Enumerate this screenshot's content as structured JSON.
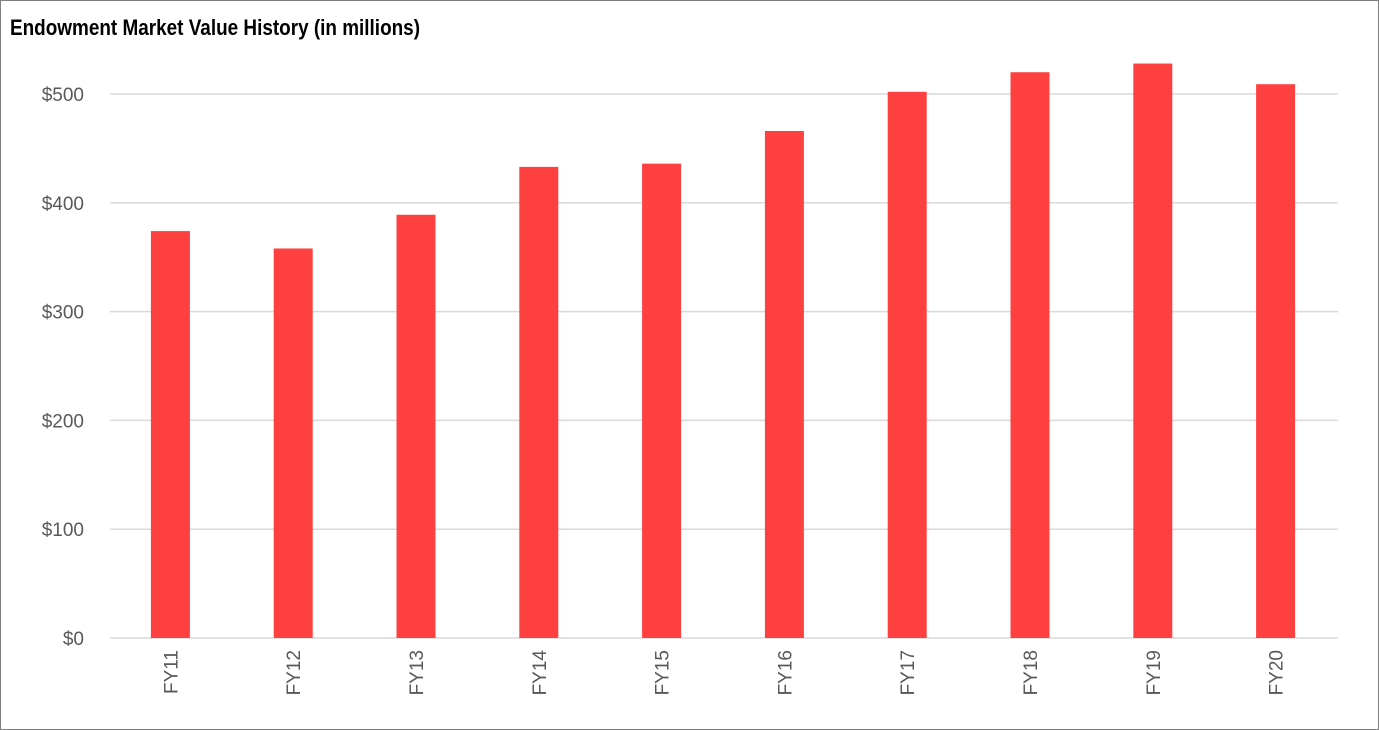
{
  "chart_data": {
    "type": "bar",
    "title": "Endowment Market Value History (in millions)",
    "xlabel": "",
    "ylabel": "",
    "categories": [
      "FY11",
      "FY12",
      "FY13",
      "FY14",
      "FY15",
      "FY16",
      "FY17",
      "FY18",
      "FY19",
      "FY20"
    ],
    "values": [
      374,
      358,
      389,
      433,
      436,
      466,
      502,
      520,
      528,
      509
    ],
    "ylim": [
      0,
      500
    ],
    "yticks": [
      0,
      100,
      200,
      300,
      400,
      500
    ],
    "ytick_labels": [
      "$0",
      "$100",
      "$200",
      "$300",
      "$400",
      "$500"
    ],
    "grid": true,
    "legend": "none",
    "colors": {
      "bar": "#ff4040",
      "grid": "#d9d9d9",
      "tick_text": "#595959",
      "border": "#7f7f7f"
    }
  }
}
